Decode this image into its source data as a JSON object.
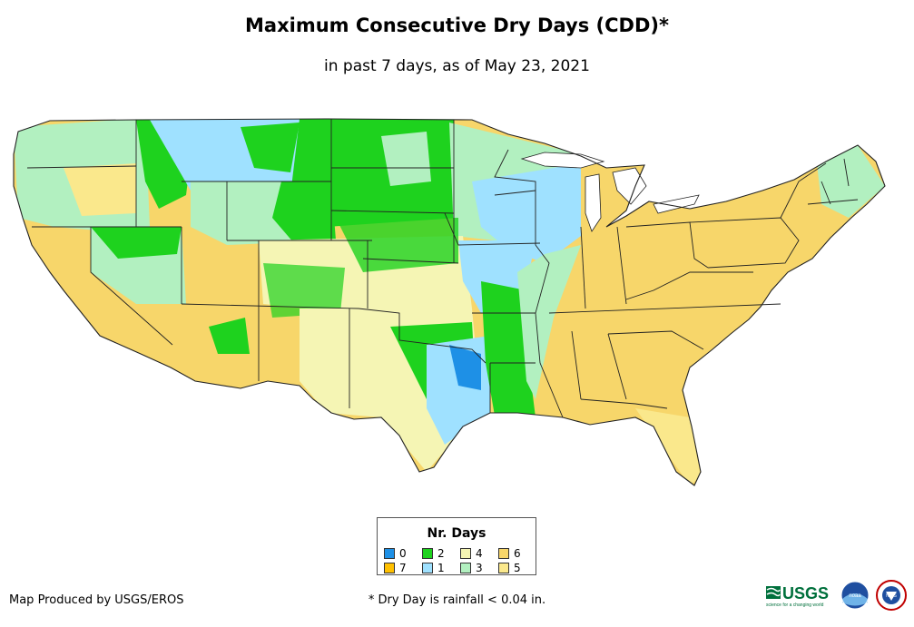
{
  "title": "Maximum Consecutive Dry Days (CDD)*",
  "subtitle": "in past 7 days, as of May 23, 2021",
  "legend": {
    "title": "Nr. Days",
    "items": [
      {
        "label": "0",
        "color": "#1e90e6"
      },
      {
        "label": "2",
        "color": "#1ed21e"
      },
      {
        "label": "4",
        "color": "#f5f5b4"
      },
      {
        "label": "6",
        "color": "#f7d66a"
      },
      {
        "label": "7",
        "color": "#ffc000"
      },
      {
        "label": "1",
        "color": "#9fe1ff"
      },
      {
        "label": "3",
        "color": "#b2f0c0"
      },
      {
        "label": "5",
        "color": "#fae88c"
      }
    ]
  },
  "credit": "Map Produced by USGS/EROS",
  "footnote": "* Dry Day is rainfall < 0.04 in.",
  "logos": {
    "usgs": "USGS",
    "usgs_tagline": "science for a changing world",
    "noaa": "noaa",
    "nws": "NWS"
  },
  "colors": {
    "state_border": "#222222",
    "background": "#ffffff"
  }
}
